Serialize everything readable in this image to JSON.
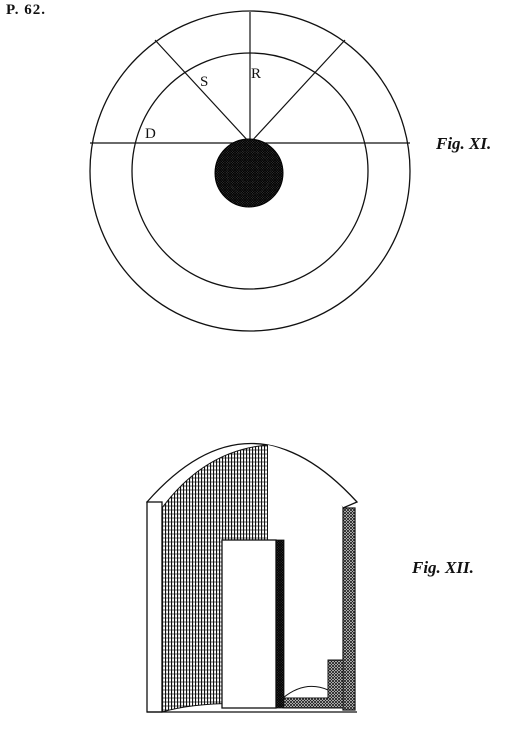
{
  "plate": {
    "number": "P. 62."
  },
  "figures": [
    {
      "label": "Fig. XI.",
      "points": [
        {
          "id": "S",
          "text": "S"
        },
        {
          "id": "R",
          "text": "R"
        },
        {
          "id": "D",
          "text": "D"
        }
      ]
    },
    {
      "label": "Fig. XII."
    }
  ],
  "colors": {
    "ink": "#111111",
    "paper": "#ffffff",
    "hatch": "#222222"
  }
}
